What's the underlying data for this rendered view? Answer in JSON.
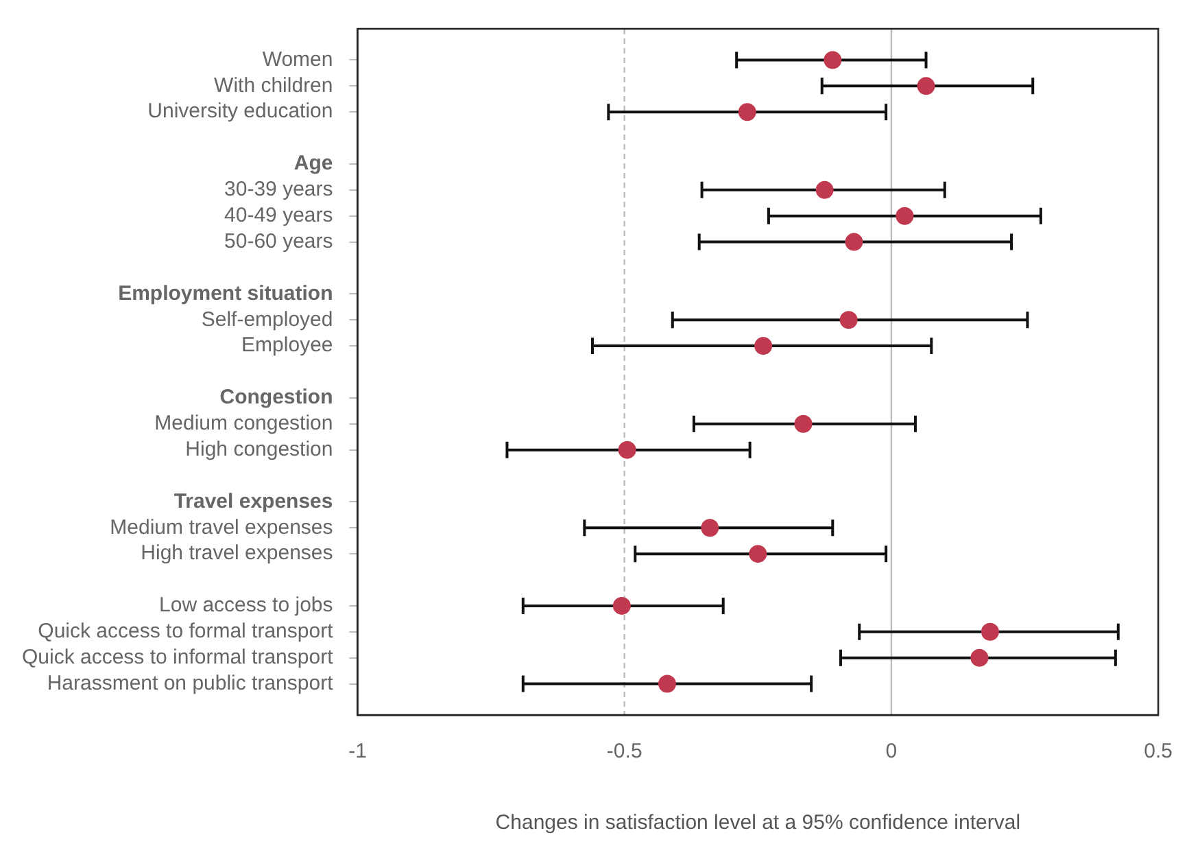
{
  "chart_data": {
    "type": "scatter",
    "orientation": "horizontal",
    "xlabel": "Changes in satisfaction level at a 95% confidence interval",
    "categories": [
      "Women",
      "With children",
      "University education",
      null,
      "Age",
      "30-39 years",
      "40-49 years",
      "50-60 years",
      null,
      "Employment situation",
      "Self-employed",
      "Employee",
      null,
      "Congestion",
      "Medium congestion",
      "High congestion",
      null,
      "Travel expenses",
      "Medium travel expenses",
      "High travel expenses",
      null,
      "Low access to jobs",
      "Quick access to formal transport",
      "Quick access to informal transport",
      "Harassment on public transport"
    ],
    "values": [
      -0.11,
      0.065,
      -0.27,
      null,
      null,
      -0.125,
      0.025,
      -0.07,
      null,
      null,
      -0.08,
      -0.24,
      null,
      null,
      -0.165,
      -0.495,
      null,
      null,
      -0.34,
      -0.25,
      null,
      -0.505,
      0.185,
      0.165,
      -0.42
    ],
    "errors": [
      [
        -0.29,
        0.065
      ],
      [
        -0.13,
        0.265
      ],
      [
        -0.53,
        -0.01
      ],
      null,
      null,
      [
        -0.355,
        0.1
      ],
      [
        -0.23,
        0.28
      ],
      [
        -0.36,
        0.225
      ],
      null,
      null,
      [
        -0.41,
        0.255
      ],
      [
        -0.56,
        0.075
      ],
      null,
      null,
      [
        -0.37,
        0.045
      ],
      [
        -0.72,
        -0.265
      ],
      null,
      null,
      [
        -0.575,
        -0.11
      ],
      [
        -0.48,
        -0.01
      ],
      null,
      [
        -0.69,
        -0.315
      ],
      [
        -0.06,
        0.425
      ],
      [
        -0.095,
        0.42
      ],
      [
        -0.69,
        -0.15
      ]
    ],
    "color": "#c0394f",
    "marker": "circle",
    "xlim": [
      -1,
      0.5
    ],
    "xticks": [
      -1,
      -0.5,
      0,
      0.5
    ],
    "ref_lines": [
      {
        "axis": "x",
        "value": -0.5,
        "color": "#bbbbbb",
        "line_style": "dashed"
      },
      {
        "axis": "x",
        "value": 0,
        "color": "#bbbbbb",
        "line_style": "solid"
      }
    ],
    "grid": false,
    "legend": false
  }
}
